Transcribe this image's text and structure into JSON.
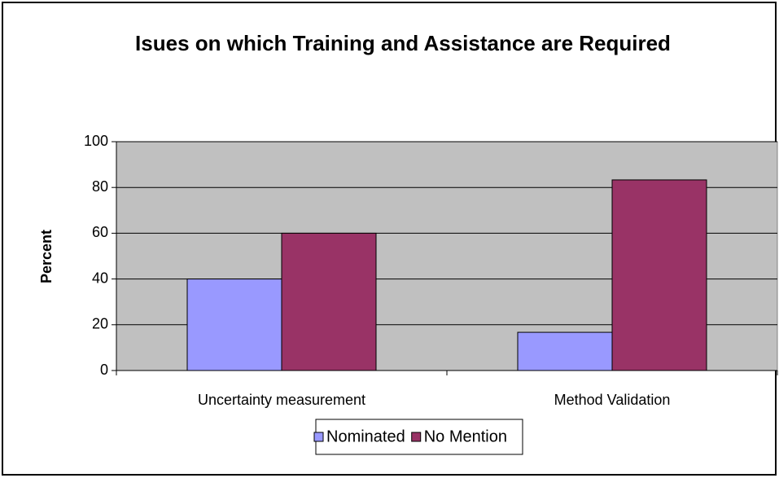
{
  "chart_data": {
    "type": "bar",
    "title": "Isues on which Training and Assistance are Required",
    "y_label": "Percent",
    "categories": [
      "Uncertainty measurement",
      "Method Validation"
    ],
    "series": [
      {
        "name": "Nominated",
        "color": "#9999ff",
        "values": [
          40,
          16.7
        ]
      },
      {
        "name": "No Mention",
        "color": "#993366",
        "values": [
          60,
          83.3
        ]
      }
    ],
    "ylim": [
      0,
      100
    ],
    "yticks": [
      0,
      20,
      40,
      60,
      80,
      100
    ],
    "grid": true,
    "legend": "bottom"
  }
}
